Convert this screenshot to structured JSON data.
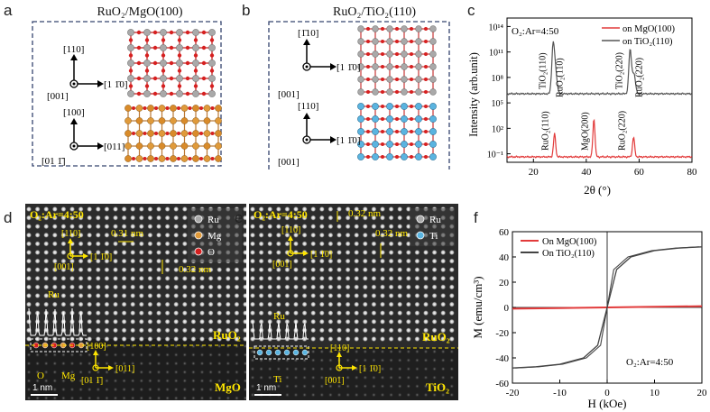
{
  "panels": {
    "a": {
      "letter": "a",
      "title": "RuO₂/MgO(100)",
      "axes_top": {
        "up": "[110]",
        "right": "[1 1̄0]",
        "out": "[001]"
      },
      "axes_bottom": {
        "up": "[100]",
        "right": "[011]",
        "out": "[01 1̄]"
      }
    },
    "b": {
      "letter": "b",
      "title": "RuO₂/TiO₂(110)",
      "axes_top": {
        "up": "[1̄10]",
        "right": "[1 1̄0]",
        "out": "[001]"
      },
      "axes_bottom": {
        "up": "[110]",
        "right": "[1 1̄0]",
        "out": "[001]"
      }
    },
    "d": {
      "letter": "d",
      "condition": "O₂:Ar=4:50",
      "legend": [
        "Ru",
        "Mg",
        "O"
      ],
      "dir_up": "[110]",
      "dir_right": "[1 1̄0]",
      "dir_out": "[001]",
      "dist1": "0.31 nm",
      "dist2": "0.32 nm",
      "atom_ru": "Ru",
      "atom_o": "O",
      "atom_mg": "Mg",
      "layer_top": "RuO₂",
      "layer_bottom": "MgO",
      "int_up": "[100]",
      "int_right": "[011]",
      "int_out": "[01 1̄]",
      "scale": "1 nm"
    },
    "e": {
      "letter": "e",
      "condition": "O₂:Ar=4:50",
      "legend": [
        "Ru",
        "Ti"
      ],
      "dir_up": "[110]",
      "dir_right": "[1 1̄0]",
      "dir_out": "[001]",
      "dist1": "0.32 nm",
      "dist2": "0.32 nm",
      "atom_ru": "Ru",
      "atom_ti": "Ti",
      "layer_top": "RuO₂",
      "layer_bottom": "TiO₂",
      "int_up": "[110]",
      "int_right": "[1 1̄0]",
      "int_out": "[001]",
      "scale": "1 nm"
    }
  },
  "colors": {
    "ru": "#a9a9a9",
    "o": "#d62020",
    "mg": "#e09a3a",
    "ti": "#5ab4e0",
    "yellow": "#ffe600",
    "red_line": "#e23b3b",
    "dark_line": "#555555"
  },
  "chart_data": [
    {
      "panel": "c",
      "type": "line",
      "ylabel": "Intensity (arb.unit)",
      "xlabel": "2θ (°)",
      "xlim": [
        10,
        80
      ],
      "x_ticks": [
        "20",
        "40",
        "60",
        "80"
      ],
      "y_scale": "log",
      "y_ticks": [
        "10⁻¹",
        "10²",
        "10⁵",
        "10⁸",
        "10¹¹",
        "10¹⁴"
      ],
      "annotation": "O₂:Ar=4:50",
      "legend_position": "top-right",
      "series": [
        {
          "name": "on MgO(100)",
          "color": "#e23b3b",
          "peaks": [
            {
              "x": 28.0,
              "label": "RuO₂(110)"
            },
            {
              "x": 42.9,
              "label": "MgO(200)"
            },
            {
              "x": 57.9,
              "label": "RuO₂(220)"
            }
          ]
        },
        {
          "name": "on TiO₂(110)",
          "color": "#555555",
          "peaks": [
            {
              "x": 27.4,
              "label": "TiO₂(110)"
            },
            {
              "x": 28.1,
              "label": "RuO₂(110)"
            },
            {
              "x": 56.6,
              "label": "TiO₂(220)"
            },
            {
              "x": 58.0,
              "label": "RuO₂(220)"
            }
          ]
        }
      ]
    },
    {
      "panel": "f",
      "type": "line",
      "ylabel": "M (emu/cm³)",
      "xlabel": "H (kOe)",
      "xlim": [
        -20,
        20
      ],
      "ylim": [
        -60,
        60
      ],
      "x_ticks": [
        -20,
        -10,
        0,
        10,
        20
      ],
      "y_ticks": [
        -60,
        -40,
        -20,
        0,
        20,
        40,
        60
      ],
      "annotation": "O₂:Ar=4:50",
      "legend_position": "top-left",
      "series": [
        {
          "name": "On MgO(100)",
          "color": "#e23b3b",
          "x": [
            -20,
            -10,
            0,
            10,
            20
          ],
          "y": [
            -1,
            -0.5,
            0,
            0.5,
            1
          ]
        },
        {
          "name": "On TiO₂(110)",
          "color": "#444444",
          "x": [
            -20,
            -15,
            -10,
            -5,
            -2,
            0,
            2,
            5,
            10,
            15,
            20
          ],
          "y": [
            -48,
            -47,
            -45,
            -40,
            -30,
            0,
            30,
            40,
            45,
            47,
            48
          ]
        }
      ]
    }
  ]
}
